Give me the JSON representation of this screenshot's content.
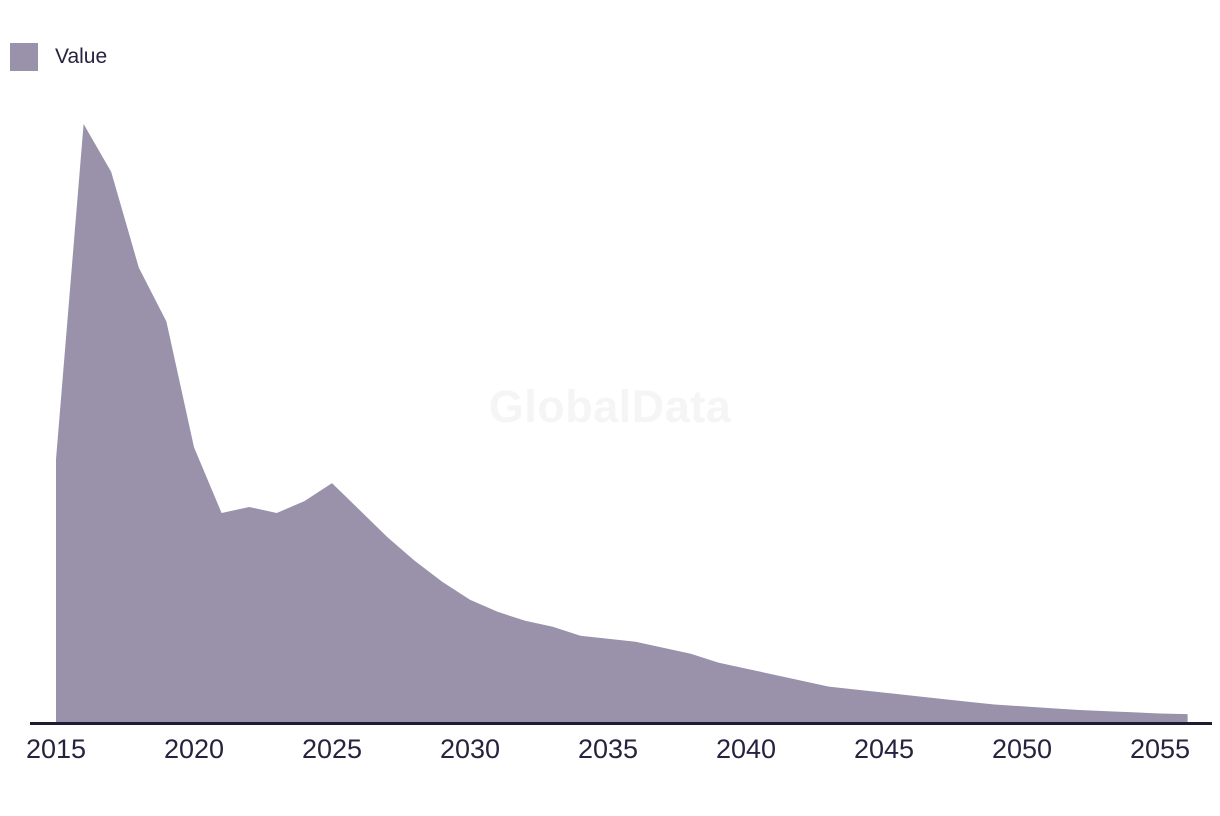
{
  "watermark": "GlobalData",
  "legend": {
    "label": "Value",
    "swatch_color": "#9a92ab"
  },
  "chart_data": {
    "type": "area",
    "title": "",
    "xlabel": "",
    "ylabel": "",
    "grid": false,
    "legend_position": "top-left",
    "area_color": "#9a92ab",
    "axis_line_color": "#1e1b33",
    "tick_label_color": "#26233e",
    "xlim": [
      2015,
      2056
    ],
    "ylim": [
      0,
      100
    ],
    "x_tick_labels": [
      "2015",
      "2020",
      "2025",
      "2030",
      "2035",
      "2040",
      "2045",
      "2050",
      "2055"
    ],
    "series": [
      {
        "name": "Value",
        "x": [
          2015,
          2016,
          2017,
          2018,
          2019,
          2020,
          2021,
          2022,
          2023,
          2024,
          2025,
          2026,
          2027,
          2028,
          2029,
          2030,
          2031,
          2032,
          2033,
          2034,
          2035,
          2036,
          2037,
          2038,
          2039,
          2040,
          2041,
          2042,
          2043,
          2044,
          2045,
          2046,
          2047,
          2048,
          2049,
          2050,
          2051,
          2052,
          2053,
          2054,
          2055,
          2056
        ],
        "values": [
          44,
          100,
          92,
          76,
          67,
          46,
          35,
          36,
          35,
          37,
          40,
          35.5,
          31,
          27,
          23.5,
          20.5,
          18.5,
          17,
          16,
          14.5,
          14,
          13.5,
          12.5,
          11.5,
          10,
          9,
          8,
          7,
          6,
          5.5,
          5,
          4.5,
          4,
          3.5,
          3,
          2.7,
          2.4,
          2.1,
          1.9,
          1.7,
          1.5,
          1.4
        ]
      }
    ]
  }
}
